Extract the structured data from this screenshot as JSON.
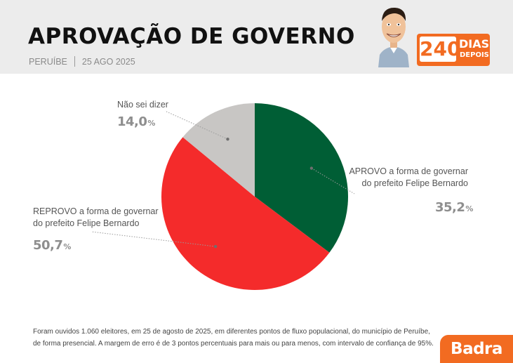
{
  "header": {
    "title": "APROVAÇÃO DE GOVERNO",
    "city": "PERUÍBE",
    "date": "25 AGO 2025",
    "badge_number": "240",
    "badge_line1": "DIAS",
    "badge_line2": "DEPOIS"
  },
  "chart_data": {
    "type": "pie",
    "slices": [
      {
        "label_line1": "APROVO a forma de governar",
        "label_line2": "do prefeito Felipe Bernardo",
        "value": 35.2,
        "display": "35,2",
        "color": "#005e35"
      },
      {
        "label_line1": "REPROVO a forma de governar",
        "label_line2": "do prefeito Felipe Bernardo",
        "value": 50.7,
        "display": "50,7",
        "color": "#f42b2b"
      },
      {
        "label_line1": "Não sei dizer",
        "label_line2": "",
        "value": 14.0,
        "display": "14,0",
        "color": "#c8c6c4"
      }
    ],
    "percent_symbol": "%",
    "start_angle": "12 o'clock",
    "direction": "clockwise"
  },
  "footer": {
    "line1": "Foram ouvidos 1.060 eleitores, em 25 de agosto de 2025, em diferentes pontos de fluxo populacional, do município de Peruíbe,",
    "line2": "de forma presencial. A margem de erro é de 3 pontos percentuais para mais ou para menos, com intervalo de confiança de 95%."
  },
  "brand": {
    "logo": "Badra",
    "accent": "#f26b21"
  }
}
